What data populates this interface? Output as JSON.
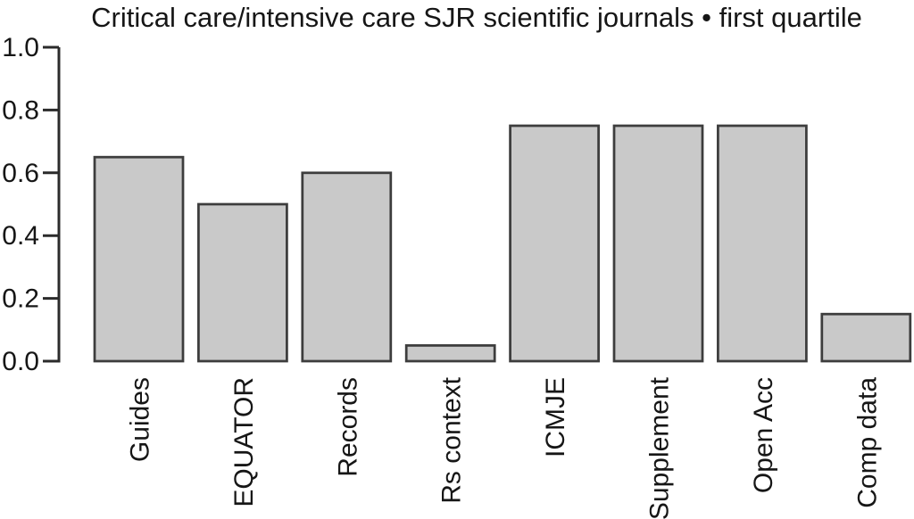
{
  "chart_data": {
    "type": "bar",
    "title": "Critical care/intensive care SJR scientific journals • first quartile",
    "categories": [
      "Guides",
      "EQUATOR",
      "Records",
      "Rs context",
      "ICMJE",
      "Supplement",
      "Open Acc",
      "Comp data"
    ],
    "values": [
      0.65,
      0.5,
      0.6,
      0.05,
      0.75,
      0.75,
      0.75,
      0.15
    ],
    "xlabel": "",
    "ylabel": "",
    "ylim": [
      0.0,
      1.0
    ],
    "yticks": [
      0.0,
      0.2,
      0.4,
      0.6,
      0.8,
      1.0
    ],
    "ytick_labels": [
      "0.0",
      "0.2",
      "0.4",
      "0.6",
      "0.8",
      "1.0"
    ],
    "grid": false,
    "legend": null,
    "colors": {
      "bar_fill": "#c9c9c9",
      "bar_stroke": "#3d3d3d",
      "axis": "#2b2b2b",
      "text": "#161616",
      "background": "#ffffff"
    }
  }
}
